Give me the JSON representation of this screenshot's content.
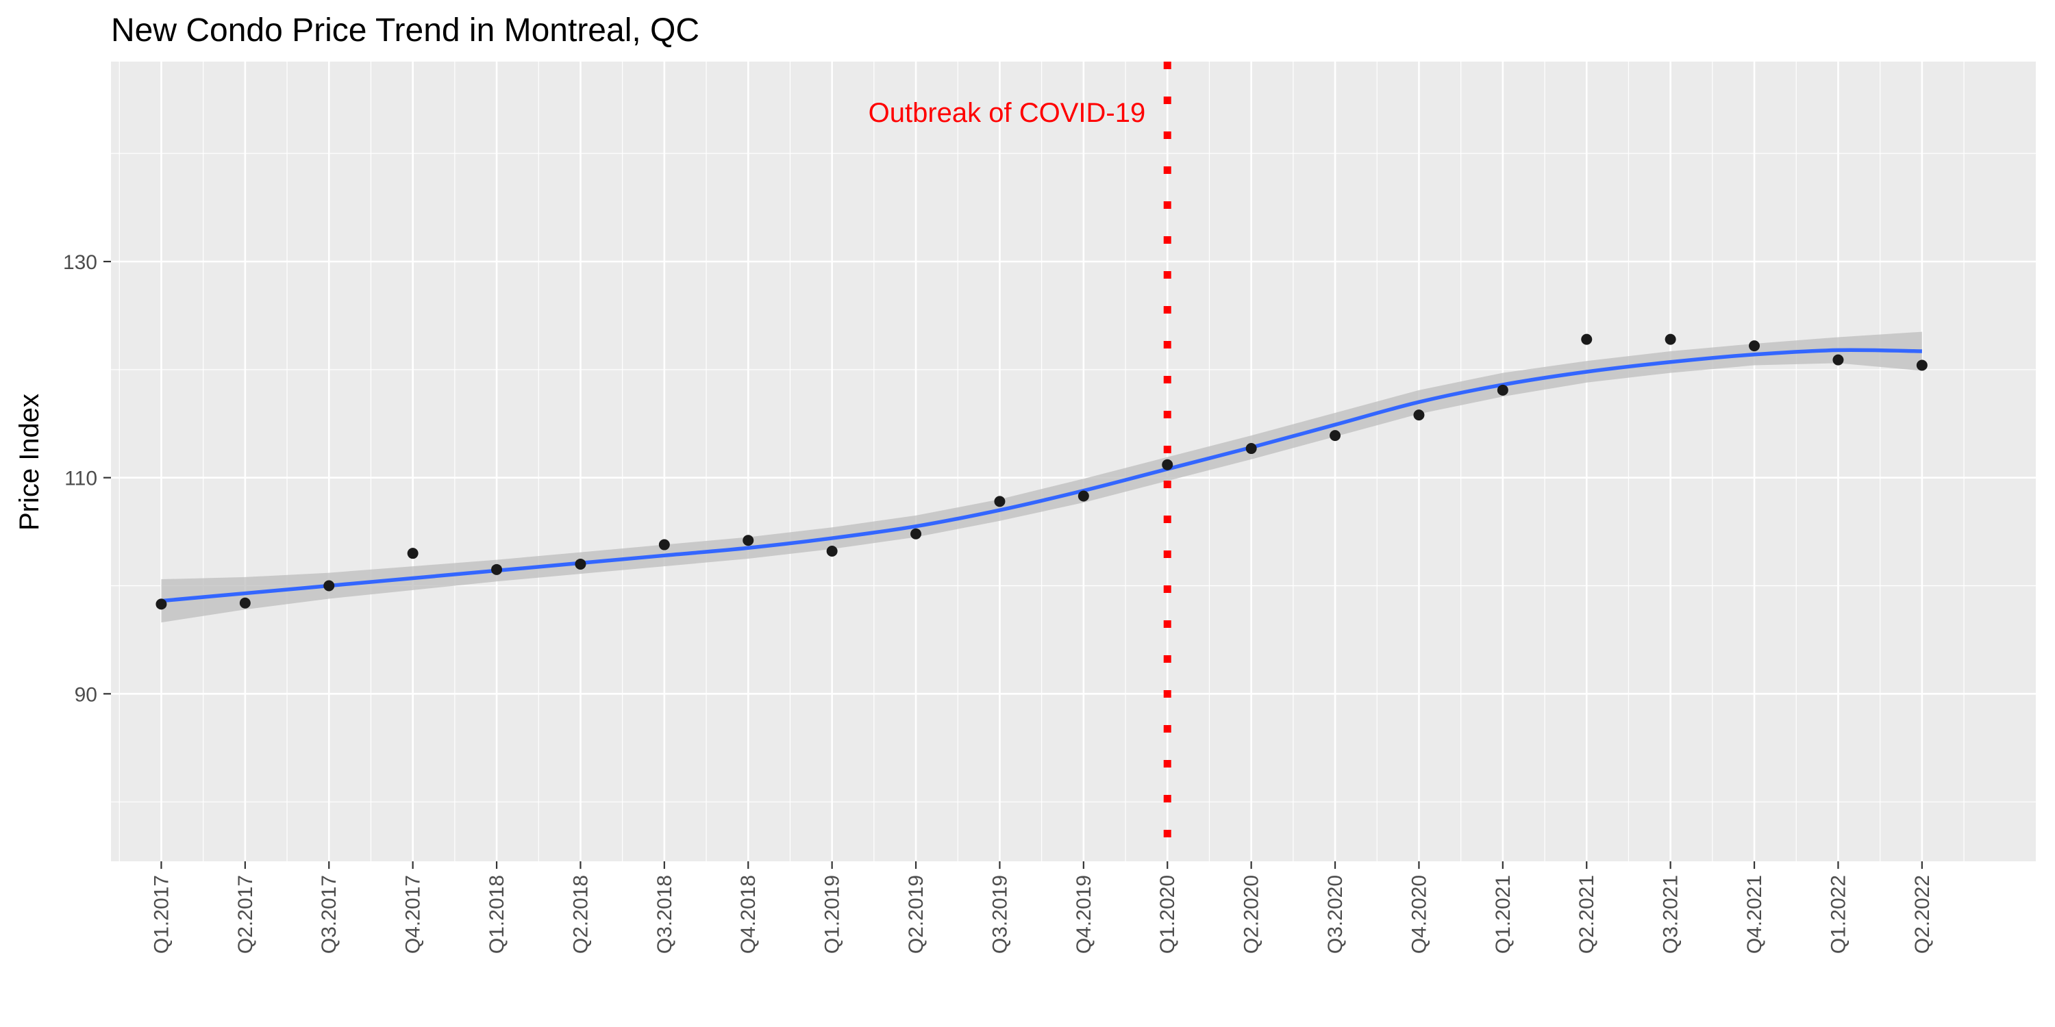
{
  "chart_data": {
    "type": "scatter",
    "title": "New Condo Price Trend in Montreal, QC",
    "xlabel": "",
    "ylabel": "Price Index",
    "categories": [
      "Q1.2017",
      "Q2.2017",
      "Q3.2017",
      "Q4.2017",
      "Q1.2018",
      "Q2.2018",
      "Q3.2018",
      "Q4.2018",
      "Q1.2019",
      "Q2.2019",
      "Q3.2019",
      "Q4.2019",
      "Q1.2020",
      "Q2.2020",
      "Q3.2020",
      "Q4.2020",
      "Q1.2021",
      "Q2.2021",
      "Q3.2021",
      "Q4.2021",
      "Q1.2022",
      "Q2.2022"
    ],
    "values": [
      98.3,
      98.4,
      100.0,
      103.0,
      101.5,
      102.0,
      103.8,
      104.2,
      103.2,
      104.8,
      107.8,
      108.3,
      111.2,
      112.7,
      113.9,
      115.8,
      118.1,
      122.8,
      122.8,
      122.2,
      120.9,
      120.4
    ],
    "smooth": [
      98.6,
      99.3,
      100.0,
      100.7,
      101.4,
      102.1,
      102.8,
      103.5,
      104.4,
      105.5,
      107.0,
      108.8,
      110.8,
      112.8,
      114.9,
      117.0,
      118.6,
      119.8,
      120.7,
      121.4,
      121.8,
      121.7
    ],
    "smooth_band": [
      2.0,
      1.5,
      1.2,
      1.1,
      1.0,
      1.0,
      1.0,
      1.0,
      1.0,
      1.0,
      1.0,
      1.1,
      1.1,
      1.1,
      1.1,
      1.1,
      1.1,
      1.0,
      1.0,
      1.0,
      1.2,
      1.8
    ],
    "ylim": [
      74.5,
      148.5
    ],
    "yticks": [
      90,
      110,
      130
    ],
    "grid": true,
    "annotation": {
      "text": "Outbreak of COVID-19",
      "category": "Q1.2020",
      "color": "#ff0000"
    },
    "colors": {
      "panel": "#ebebeb",
      "grid": "#ffffff",
      "points": "#1a1a1a",
      "smooth_line": "#3366ff",
      "smooth_band": "#bdbdbd",
      "vline": "#ff0000"
    }
  }
}
